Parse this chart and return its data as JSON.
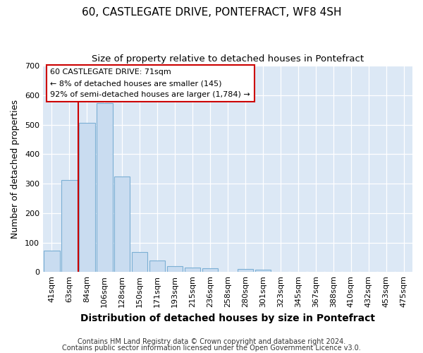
{
  "title": "60, CASTLEGATE DRIVE, PONTEFRACT, WF8 4SH",
  "subtitle": "Size of property relative to detached houses in Pontefract",
  "xlabel": "Distribution of detached houses by size in Pontefract",
  "ylabel": "Number of detached properties",
  "bar_labels": [
    "41sqm",
    "63sqm",
    "84sqm",
    "106sqm",
    "128sqm",
    "150sqm",
    "171sqm",
    "193sqm",
    "215sqm",
    "236sqm",
    "258sqm",
    "280sqm",
    "301sqm",
    "323sqm",
    "345sqm",
    "367sqm",
    "388sqm",
    "410sqm",
    "432sqm",
    "453sqm",
    "475sqm"
  ],
  "bar_values": [
    72,
    313,
    505,
    573,
    325,
    67,
    40,
    19,
    16,
    13,
    0,
    11,
    7,
    0,
    0,
    0,
    0,
    0,
    0,
    0,
    0
  ],
  "bar_color": "#c9dcf0",
  "bar_edge_color": "#7bafd4",
  "ylim": [
    0,
    700
  ],
  "yticks": [
    0,
    100,
    200,
    300,
    400,
    500,
    600,
    700
  ],
  "vline_x": 1.5,
  "vline_color": "#cc0000",
  "annotation_box_text": "60 CASTLEGATE DRIVE: 71sqm\n← 8% of detached houses are smaller (145)\n92% of semi-detached houses are larger (1,784) →",
  "footer_line1": "Contains HM Land Registry data © Crown copyright and database right 2024.",
  "footer_line2": "Contains public sector information licensed under the Open Government Licence v3.0.",
  "bg_color": "#ffffff",
  "plot_bg_color": "#dce8f5",
  "title_fontsize": 11,
  "subtitle_fontsize": 9.5,
  "xlabel_fontsize": 10,
  "ylabel_fontsize": 9,
  "tick_fontsize": 8,
  "footer_fontsize": 7
}
